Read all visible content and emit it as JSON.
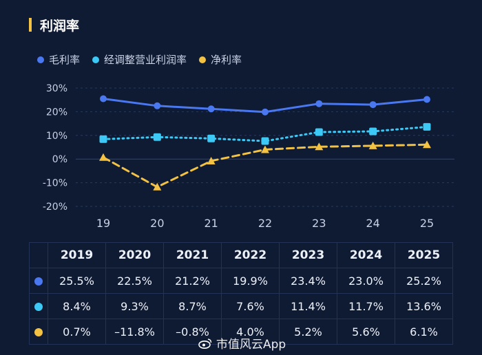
{
  "header": {
    "title": "利润率"
  },
  "colors": {
    "background": "#0f1a33",
    "grid": "#2a3a60",
    "axis_text": "#c9d2e6",
    "gross": "#4a78f0",
    "adjusted": "#3dc9f5",
    "net": "#f3c243",
    "title_bar": "#f3c243"
  },
  "chart_data": {
    "type": "line",
    "title": "利润率",
    "categories": [
      "19",
      "20",
      "21",
      "22",
      "23",
      "24",
      "25"
    ],
    "y_ticks": [
      "30%",
      "20%",
      "10%",
      "0%",
      "-10%",
      "-20%"
    ],
    "ylim": [
      -20,
      30
    ],
    "grid": "y-major-dashed",
    "legend_position": "top-left",
    "series": [
      {
        "name": "毛利率",
        "style": "solid-circle",
        "values": [
          25.5,
          22.5,
          21.2,
          19.9,
          23.4,
          23.0,
          25.2
        ]
      },
      {
        "name": "经调整营业利润率",
        "style": "dotted-square",
        "values": [
          8.4,
          9.3,
          8.7,
          7.6,
          11.4,
          11.7,
          13.6
        ]
      },
      {
        "name": "净利率",
        "style": "dashed-triangle",
        "values": [
          0.7,
          -11.8,
          -0.8,
          4.0,
          5.2,
          5.6,
          6.1
        ]
      }
    ]
  },
  "table": {
    "years": [
      "2019",
      "2020",
      "2021",
      "2022",
      "2023",
      "2024",
      "2025"
    ],
    "rows": [
      {
        "series": "毛利率",
        "cells": [
          "25.5%",
          "22.5%",
          "21.2%",
          "19.9%",
          "23.4%",
          "23.0%",
          "25.2%"
        ]
      },
      {
        "series": "经调整营业利润率",
        "cells": [
          "8.4%",
          "9.3%",
          "8.7%",
          "7.6%",
          "11.4%",
          "11.7%",
          "13.6%"
        ]
      },
      {
        "series": "净利率",
        "cells": [
          "0.7%",
          "–11.8%",
          "–0.8%",
          "4.0%",
          "5.2%",
          "5.6%",
          "6.1%"
        ]
      }
    ]
  },
  "watermark": {
    "text": "市值风云App"
  }
}
